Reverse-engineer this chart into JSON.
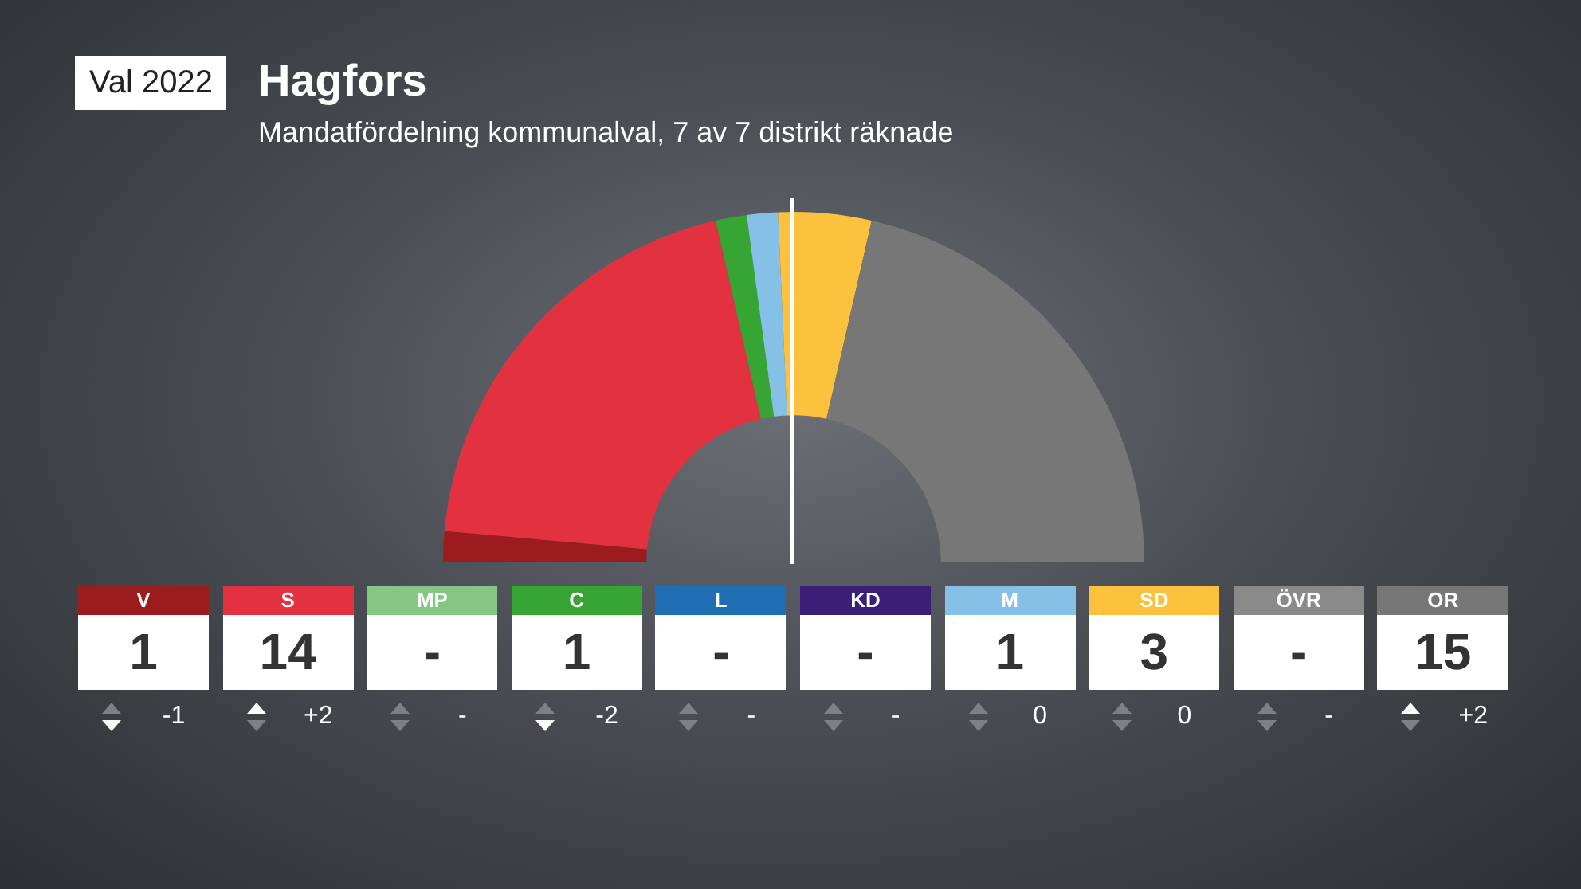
{
  "chart_data": {
    "type": "donut",
    "title": "Hagfors",
    "subtitle": "Mandatfördelning kommunalval, 7 av 7 distrikt räknade",
    "categories": [
      "V",
      "S",
      "MP",
      "C",
      "L",
      "KD",
      "M",
      "SD",
      "ÖVR",
      "OR"
    ],
    "values": [
      1,
      14,
      0,
      1,
      0,
      0,
      1,
      3,
      0,
      15
    ],
    "value_labels": [
      "1",
      "14",
      "-",
      "1",
      "-",
      "-",
      "1",
      "3",
      "-",
      "15"
    ],
    "colors": [
      "#9b1b1e",
      "#e2323f",
      "#83c783",
      "#36a533",
      "#1f6db3",
      "#3b1e78",
      "#85c1e6",
      "#fcc23d",
      "#8a8a8a",
      "#777777"
    ],
    "annotations": [
      "Val 2022",
      "-1",
      "+2",
      "-",
      "-2",
      "-",
      "-",
      "0",
      "0",
      "-",
      "+2"
    ],
    "legend": "bottom"
  }
}
